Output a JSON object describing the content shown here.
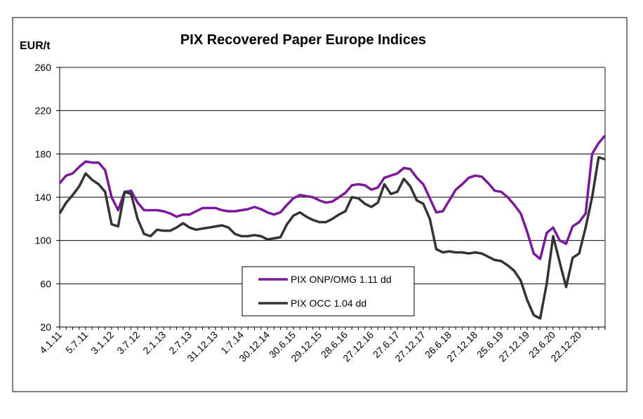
{
  "chart_data": {
    "type": "line",
    "title": "PIX Recovered Paper Europe Indices",
    "y_label": "EUR/t",
    "categories": [
      "4.1.11",
      null,
      null,
      null,
      "5.7.11",
      null,
      null,
      null,
      "3.1.12",
      null,
      null,
      null,
      "3.7.12",
      null,
      null,
      null,
      "2.1.13",
      null,
      null,
      null,
      "2.7.13",
      null,
      null,
      null,
      "31.12.13",
      null,
      null,
      null,
      "1.7.14",
      null,
      null,
      null,
      "30.12.14",
      null,
      null,
      null,
      "30.6.15",
      null,
      null,
      null,
      "29.12.15",
      null,
      null,
      null,
      "28.6.16",
      null,
      null,
      null,
      "27.12.16",
      null,
      null,
      null,
      "27.6.17",
      null,
      null,
      null,
      "27.12.17",
      null,
      null,
      null,
      "26.6.18",
      null,
      null,
      null,
      "27.12.18",
      null,
      null,
      null,
      "25.6.19",
      null,
      null,
      null,
      "27.12.19",
      null,
      null,
      null,
      "23.6.20",
      null,
      null,
      null,
      "22.12.20",
      null,
      null,
      null,
      null
    ],
    "series": [
      {
        "name": "PIX ONP/OMG 1.11 dd",
        "color": "#7a1a9a",
        "values": [
          153,
          160,
          162,
          168,
          173,
          172,
          172,
          165,
          140,
          128,
          145,
          146,
          135,
          128,
          128,
          128,
          127,
          125,
          122,
          124,
          124,
          127,
          130,
          130,
          130,
          128,
          127,
          127,
          128,
          129,
          131,
          129,
          126,
          124,
          126,
          133,
          139,
          142,
          141,
          140,
          137,
          135,
          136,
          140,
          144,
          151,
          152,
          151,
          147,
          149,
          158,
          160,
          162,
          167,
          166,
          158,
          152,
          139,
          126,
          127,
          137,
          147,
          152,
          158,
          160,
          159,
          153,
          146,
          145,
          140,
          133,
          125,
          108,
          88,
          83,
          107,
          112,
          100,
          97,
          113,
          117,
          125,
          180,
          190,
          197
        ]
      },
      {
        "name": "PIX OCC 1.04 dd",
        "color": "#333333",
        "values": [
          125,
          135,
          142,
          150,
          162,
          156,
          152,
          145,
          115,
          113,
          145,
          143,
          120,
          106,
          104,
          110,
          109,
          109,
          112,
          116,
          112,
          110,
          111,
          112,
          113,
          114,
          112,
          106,
          104,
          104,
          105,
          104,
          101,
          102,
          103,
          115,
          123,
          126,
          122,
          119,
          117,
          117,
          120,
          124,
          127,
          140,
          139,
          134,
          131,
          135,
          152,
          143,
          145,
          157,
          150,
          137,
          134,
          120,
          92,
          89,
          90,
          89,
          89,
          88,
          89,
          88,
          85,
          82,
          81,
          77,
          72,
          63,
          45,
          31,
          28,
          60,
          104,
          80,
          57,
          84,
          88,
          112,
          140,
          177,
          175
        ]
      }
    ],
    "ylim": [
      20,
      260
    ],
    "yticks": [
      20,
      60,
      100,
      140,
      180,
      220,
      260
    ],
    "grid": true
  }
}
